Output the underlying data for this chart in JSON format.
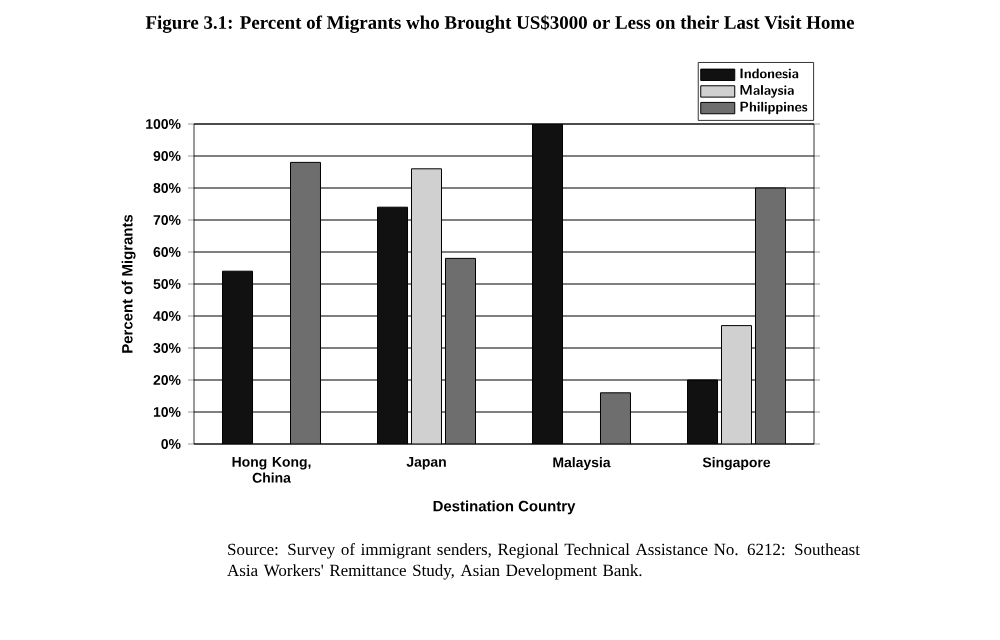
{
  "chart_data": {
    "type": "bar",
    "title": "Figure 3.1: Percent of Migrants who Brought US$3000 or Less on their Last Visit Home",
    "xlabel": "Destination Country",
    "ylabel": "Percent of Migrants",
    "categories": [
      "Hong Kong, China",
      "Japan",
      "Malaysia",
      "Singapore"
    ],
    "series": [
      {
        "name": "Indonesia",
        "color": "#111111",
        "values": [
          54,
          74,
          100,
          20
        ]
      },
      {
        "name": "Malaysia",
        "color": "#d0d0d0",
        "values": [
          null,
          86,
          null,
          37
        ]
      },
      {
        "name": "Philippines",
        "color": "#6e6e6e",
        "values": [
          88,
          58,
          16,
          80
        ]
      }
    ],
    "ylim": [
      0,
      100
    ],
    "yticks": [
      {
        "value": 0,
        "label": "0%"
      },
      {
        "value": 10,
        "label": "10%"
      },
      {
        "value": 20,
        "label": "20%"
      },
      {
        "value": 30,
        "label": "30%"
      },
      {
        "value": 40,
        "label": "40%"
      },
      {
        "value": 50,
        "label": "50%"
      },
      {
        "value": 60,
        "label": "60%"
      },
      {
        "value": 70,
        "label": "70%"
      },
      {
        "value": 80,
        "label": "80%"
      },
      {
        "value": 90,
        "label": "90%"
      },
      {
        "value": 100,
        "label": "100%"
      }
    ],
    "grid": "y",
    "legend": "top right",
    "annotations": [
      "Source: Survey of immigrant senders, Regional Technical Assistance No. 6212: Southeast Asia Workers' Remittance Study, Asian Development Bank."
    ]
  }
}
